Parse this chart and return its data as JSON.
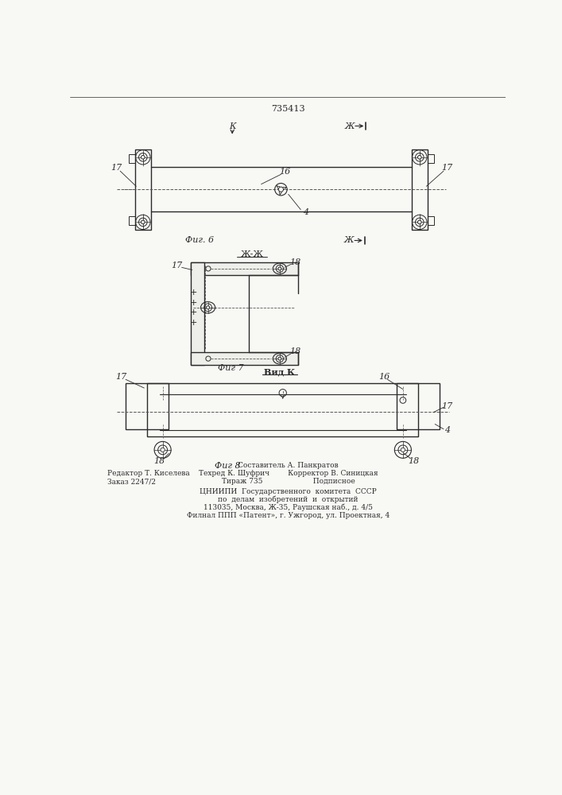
{
  "title": "735413",
  "bg_color": "#f8f8f5",
  "line_color": "#2a2a2a",
  "fig6_caption": "Фиг. 6",
  "fig7_caption": "Фиг 7",
  "fig8_caption": "Фиг 8",
  "view_k_label": "К",
  "view_zh_label": "Ж",
  "view_zhzh_label": "Ж-Ж",
  "view_vidk_label": "Вид К",
  "label_16": "16",
  "label_17": "17",
  "label_4": "4",
  "label_18": "18",
  "bottom_left": [
    "Редактор Т. Киселева",
    "Заказ 2247/2"
  ],
  "bottom_center_top": "Составитель А. Панкратов",
  "bottom_center_mid1": "Техред К. Шуфрич        Корректор В. Синицкая",
  "bottom_center_mid2": "Тираж 735                      Подписное",
  "bottom_main": [
    "ЦНИИПИ  Государственного  комитета  СССР",
    "по  делам  изобретений  и  открытий",
    "113035, Москва, Ж-35, Раушская наб., д. 4/5",
    "Филнал ППП «Патент», г. Ужгород, ул. Проектная, 4"
  ]
}
